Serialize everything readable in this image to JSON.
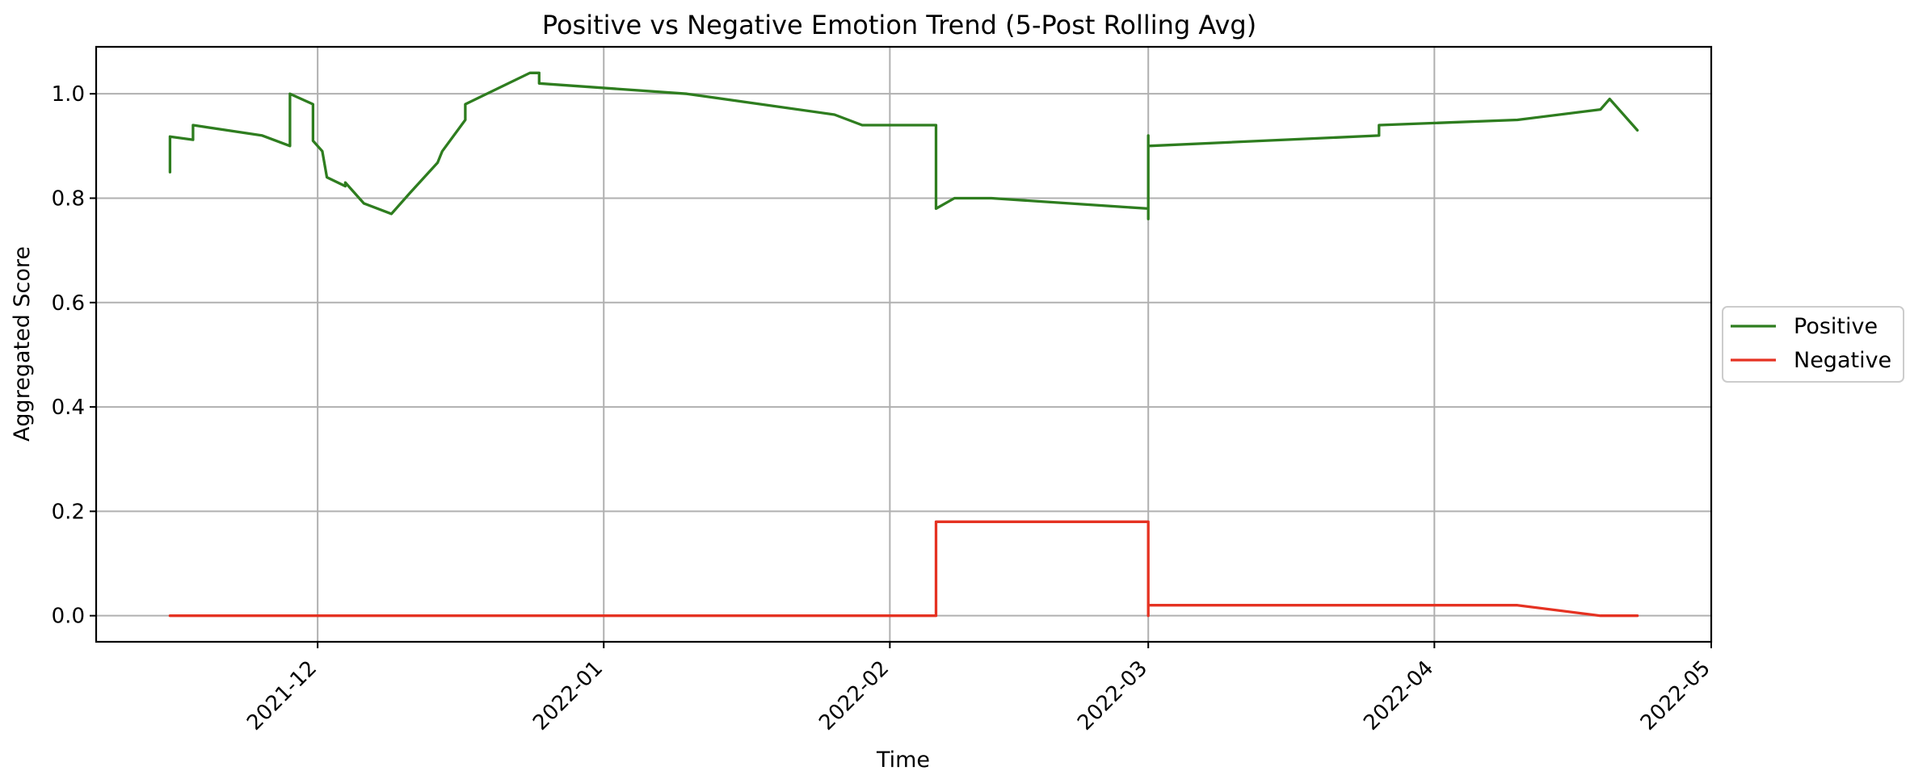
{
  "chart_data": {
    "type": "line",
    "title": "Positive vs Negative Emotion Trend (5-Post Rolling Avg)",
    "xlabel": "Time",
    "ylabel": "Aggregated Score",
    "xlim": [
      "2021-11-07",
      "2022-05-01"
    ],
    "ylim": [
      -0.05,
      1.09
    ],
    "grid": true,
    "legend_position": "center-right outside",
    "x_ticks": [
      "2021-12",
      "2022-01",
      "2022-02",
      "2022-03",
      "2022-04",
      "2022-05"
    ],
    "y_ticks": [
      "0.0",
      "0.2",
      "0.4",
      "0.6",
      "0.8",
      "1.0"
    ],
    "series": [
      {
        "name": "Positive",
        "color": "#2e7d1f",
        "points": [
          [
            "2021-11-15",
            0.85
          ],
          [
            "2021-11-15",
            0.918
          ],
          [
            "2021-11-17.5",
            0.912
          ],
          [
            "2021-11-17.5",
            0.94
          ],
          [
            "2021-11-25",
            0.92
          ],
          [
            "2021-11-28",
            0.9
          ],
          [
            "2021-11-28",
            1.0
          ],
          [
            "2021-11-30.5",
            0.98
          ],
          [
            "2021-11-30.5",
            0.91
          ],
          [
            "2021-12-01.5",
            0.89
          ],
          [
            "2021-12-02",
            0.84
          ],
          [
            "2021-12-04",
            0.823
          ],
          [
            "2021-12-04",
            0.83
          ],
          [
            "2021-12-06",
            0.79
          ],
          [
            "2021-12-09",
            0.77
          ],
          [
            "2021-12-11",
            0.81
          ],
          [
            "2021-12-14",
            0.868
          ],
          [
            "2021-12-14.5",
            0.89
          ],
          [
            "2021-12-17",
            0.95
          ],
          [
            "2021-12-17",
            0.98
          ],
          [
            "2021-12-24",
            1.04
          ],
          [
            "2021-12-25",
            1.04
          ],
          [
            "2021-12-25",
            1.02
          ],
          [
            "2022-01-10",
            1.0
          ],
          [
            "2022-01-26",
            0.96
          ],
          [
            "2022-01-29",
            0.94
          ],
          [
            "2022-02-06",
            0.94
          ],
          [
            "2022-02-06",
            0.78
          ],
          [
            "2022-02-08",
            0.8
          ],
          [
            "2022-02-12",
            0.8
          ],
          [
            "2022-03-01",
            0.78
          ],
          [
            "2022-03-01",
            0.76
          ],
          [
            "2022-03-01",
            0.92
          ],
          [
            "2022-03-01",
            0.9
          ],
          [
            "2022-03-26",
            0.92
          ],
          [
            "2022-03-26",
            0.94
          ],
          [
            "2022-04-10",
            0.95
          ],
          [
            "2022-04-19",
            0.97
          ],
          [
            "2022-04-20",
            0.99
          ],
          [
            "2022-04-23",
            0.93
          ]
        ]
      },
      {
        "name": "Negative",
        "color": "#e53222",
        "points": [
          [
            "2021-11-15",
            0.0
          ],
          [
            "2022-02-06",
            0.0
          ],
          [
            "2022-02-06",
            0.18
          ],
          [
            "2022-03-01",
            0.18
          ],
          [
            "2022-03-01",
            0.0
          ],
          [
            "2022-03-01",
            0.02
          ],
          [
            "2022-04-10",
            0.02
          ],
          [
            "2022-04-19",
            0.0
          ],
          [
            "2022-04-23",
            0.0
          ]
        ]
      }
    ]
  }
}
